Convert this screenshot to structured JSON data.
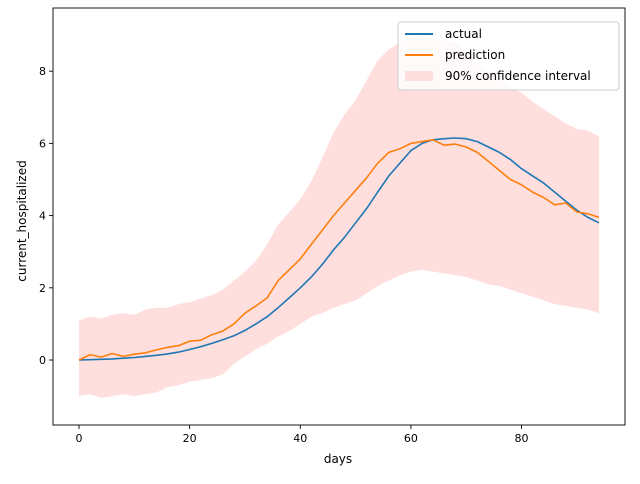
{
  "chart_data": {
    "type": "line",
    "xlabel": "days",
    "ylabel": "current_hospitalized",
    "xlim": [
      -4.7,
      98.7
    ],
    "ylim": [
      -1.8,
      9.75
    ],
    "xticks": [
      0,
      20,
      40,
      60,
      80
    ],
    "yticks": [
      0,
      2,
      4,
      6,
      8
    ],
    "legend_position": "top-right",
    "grid": false,
    "x": [
      0,
      2,
      4,
      6,
      8,
      10,
      12,
      14,
      16,
      18,
      20,
      22,
      24,
      26,
      28,
      30,
      32,
      34,
      36,
      38,
      40,
      42,
      44,
      46,
      48,
      50,
      52,
      54,
      56,
      58,
      60,
      62,
      64,
      66,
      68,
      70,
      72,
      74,
      76,
      78,
      80,
      82,
      84,
      86,
      88,
      90,
      92,
      94
    ],
    "series": [
      {
        "name": "actual",
        "color": "#1f77b4",
        "values": [
          0.0,
          0.01,
          0.02,
          0.03,
          0.05,
          0.07,
          0.1,
          0.13,
          0.17,
          0.22,
          0.29,
          0.37,
          0.46,
          0.56,
          0.67,
          0.82,
          1.0,
          1.2,
          1.45,
          1.72,
          2.0,
          2.3,
          2.65,
          3.05,
          3.4,
          3.8,
          4.2,
          4.65,
          5.1,
          5.45,
          5.8,
          6.0,
          6.1,
          6.13,
          6.15,
          6.13,
          6.05,
          5.9,
          5.75,
          5.55,
          5.3,
          5.1,
          4.9,
          4.65,
          4.4,
          4.15,
          3.95,
          3.8
        ]
      },
      {
        "name": "prediction",
        "color": "#ff7f0e",
        "values": [
          0.0,
          0.15,
          0.08,
          0.18,
          0.1,
          0.16,
          0.2,
          0.28,
          0.35,
          0.4,
          0.52,
          0.55,
          0.7,
          0.8,
          1.0,
          1.3,
          1.5,
          1.72,
          2.2,
          2.5,
          2.8,
          3.2,
          3.6,
          4.0,
          4.35,
          4.7,
          5.05,
          5.45,
          5.75,
          5.85,
          6.0,
          6.05,
          6.1,
          5.95,
          5.98,
          5.9,
          5.75,
          5.5,
          5.25,
          5.0,
          4.85,
          4.65,
          4.5,
          4.3,
          4.35,
          4.1,
          4.05,
          3.95
        ]
      },
      {
        "name": "90% confidence interval",
        "color": "#ffdede",
        "upper": [
          1.1,
          1.2,
          1.15,
          1.25,
          1.3,
          1.25,
          1.4,
          1.45,
          1.45,
          1.55,
          1.6,
          1.7,
          1.8,
          1.95,
          2.2,
          2.45,
          2.75,
          3.2,
          3.75,
          4.1,
          4.45,
          4.95,
          5.6,
          6.3,
          6.8,
          7.2,
          7.75,
          8.3,
          8.6,
          8.8,
          8.95,
          9.0,
          8.9,
          8.85,
          8.8,
          8.55,
          8.2,
          8.0,
          7.8,
          7.55,
          7.4,
          7.15,
          6.95,
          6.75,
          6.55,
          6.4,
          6.35,
          6.2
        ],
        "lower": [
          -1.0,
          -0.95,
          -1.05,
          -1.0,
          -0.95,
          -1.0,
          -0.95,
          -0.9,
          -0.75,
          -0.7,
          -0.6,
          -0.55,
          -0.5,
          -0.4,
          -0.1,
          0.1,
          0.3,
          0.45,
          0.65,
          0.8,
          1.0,
          1.2,
          1.3,
          1.45,
          1.55,
          1.65,
          1.85,
          2.05,
          2.2,
          2.35,
          2.45,
          2.5,
          2.45,
          2.4,
          2.35,
          2.3,
          2.2,
          2.1,
          2.05,
          1.95,
          1.85,
          1.75,
          1.65,
          1.55,
          1.5,
          1.45,
          1.4,
          1.3
        ]
      }
    ]
  }
}
